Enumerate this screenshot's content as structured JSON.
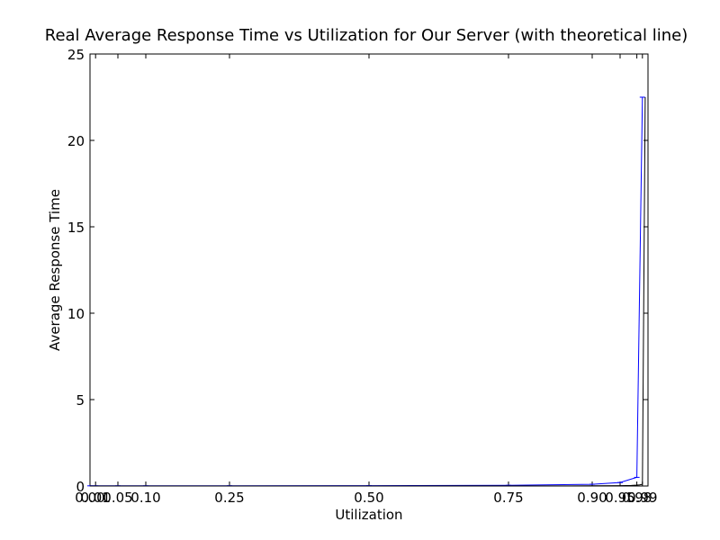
{
  "chart_data": {
    "type": "line",
    "title": "Real Average Response Time vs Utilization for Our Server (with theoretical line)",
    "xlabel": "Utilization",
    "ylabel": "Average Response Time",
    "xlim": [
      0,
      1
    ],
    "ylim": [
      0,
      25
    ],
    "xticks": [
      0.0,
      0.01,
      0.05,
      0.1,
      0.25,
      0.5,
      0.75,
      0.9,
      0.95,
      0.98,
      0.99
    ],
    "xtick_labels": [
      "0.00",
      "0.01",
      "0.05",
      "0.10",
      "0.25",
      "0.50",
      "0.75",
      "0.90",
      "0.95",
      "0.98",
      "0.99"
    ],
    "yticks": [
      0,
      5,
      10,
      15,
      20,
      25
    ],
    "ytick_labels": [
      "0",
      "5",
      "10",
      "15",
      "20",
      "25"
    ],
    "grid": false,
    "colors": {
      "real": "#0000ff",
      "theoretical": "#000000"
    },
    "series": [
      {
        "style": "real",
        "x": [
          0.0,
          0.01,
          0.05,
          0.1,
          0.25,
          0.5,
          0.75,
          0.9,
          0.95,
          0.98,
          0.99
        ],
        "y": [
          0.01,
          0.01,
          0.01,
          0.01,
          0.013,
          0.02,
          0.04,
          0.1,
          0.2,
          0.5,
          22.5
        ]
      },
      {
        "style": "theoretical",
        "x": [
          0.0,
          0.1,
          0.25,
          0.5,
          0.75,
          0.9,
          0.95,
          0.97,
          0.98,
          0.985,
          0.99,
          0.995
        ],
        "y": [
          0.0,
          0.001,
          0.0013,
          0.002,
          0.004,
          0.01,
          0.02,
          0.033,
          0.05,
          0.067,
          0.1,
          22.5
        ]
      }
    ]
  }
}
